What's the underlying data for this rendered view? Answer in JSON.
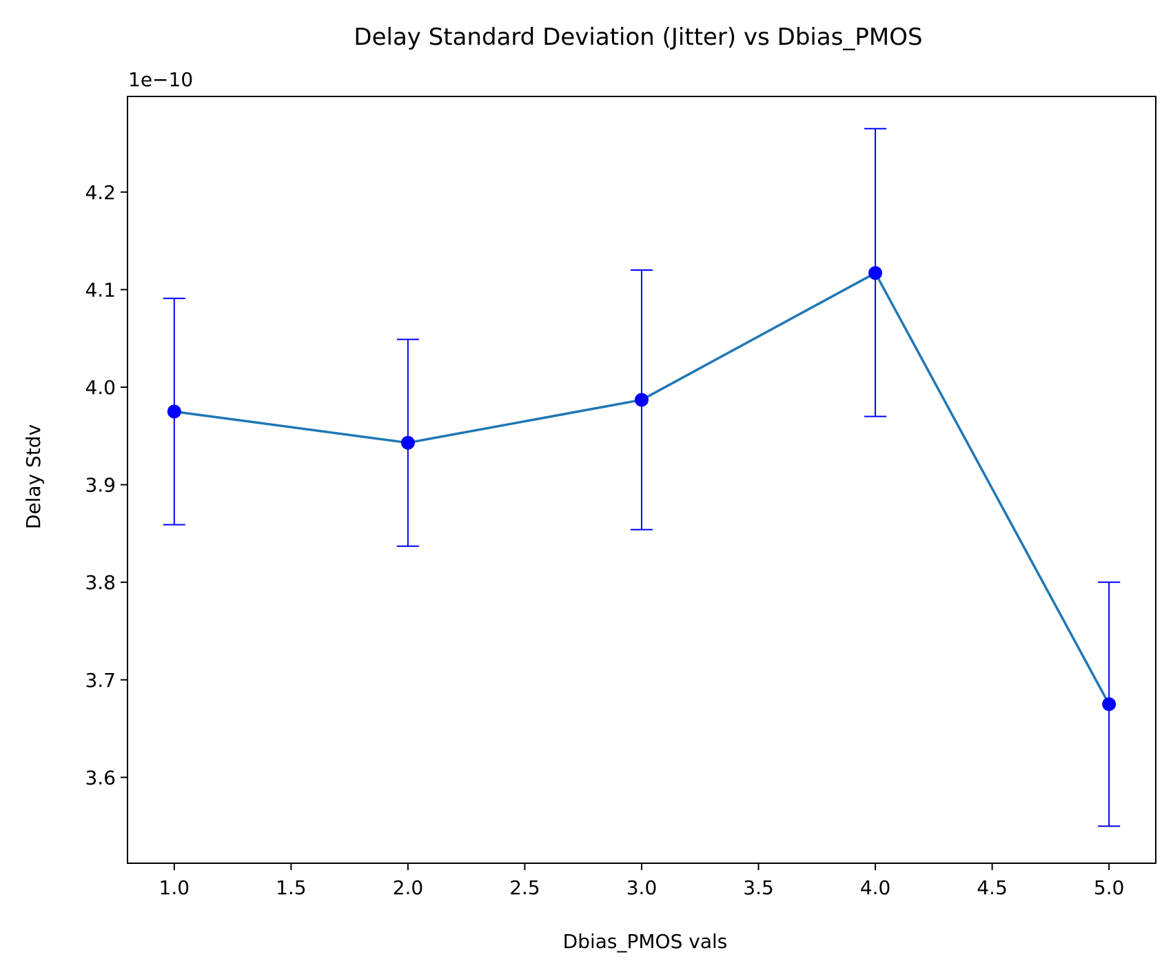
{
  "chart_data": {
    "type": "line",
    "title": "Delay Standard Deviation (Jitter) vs Dbias_PMOS",
    "xlabel": "Dbias_PMOS vals",
    "ylabel": "Delay Stdv",
    "y_offset_text": "1e−10",
    "y_scale_factor": 1e-10,
    "xlim": [
      0.8,
      5.2
    ],
    "ylim": [
      3.512,
      4.298
    ],
    "xticks": [
      1.0,
      1.5,
      2.0,
      2.5,
      3.0,
      3.5,
      4.0,
      4.5,
      5.0
    ],
    "xtick_labels": [
      "1.0",
      "1.5",
      "2.0",
      "2.5",
      "3.0",
      "3.5",
      "4.0",
      "4.5",
      "5.0"
    ],
    "yticks": [
      3.6,
      3.7,
      3.8,
      3.9,
      4.0,
      4.1,
      4.2
    ],
    "ytick_labels": [
      "3.6",
      "3.7",
      "3.8",
      "3.9",
      "4.0",
      "4.1",
      "4.2"
    ],
    "grid": false,
    "legend": null,
    "series": [
      {
        "x": [
          1,
          2,
          3,
          4,
          5
        ],
        "y": [
          3.975,
          3.943,
          3.987,
          4.117,
          3.675
        ],
        "yerr_low": [
          3.859,
          3.837,
          3.854,
          3.97,
          3.55
        ],
        "yerr_high": [
          4.091,
          4.049,
          4.12,
          4.265,
          3.8
        ],
        "line_color": "#1f77b4",
        "marker_color": "#0000ff",
        "errorbar_color": "#0000ff"
      }
    ]
  }
}
